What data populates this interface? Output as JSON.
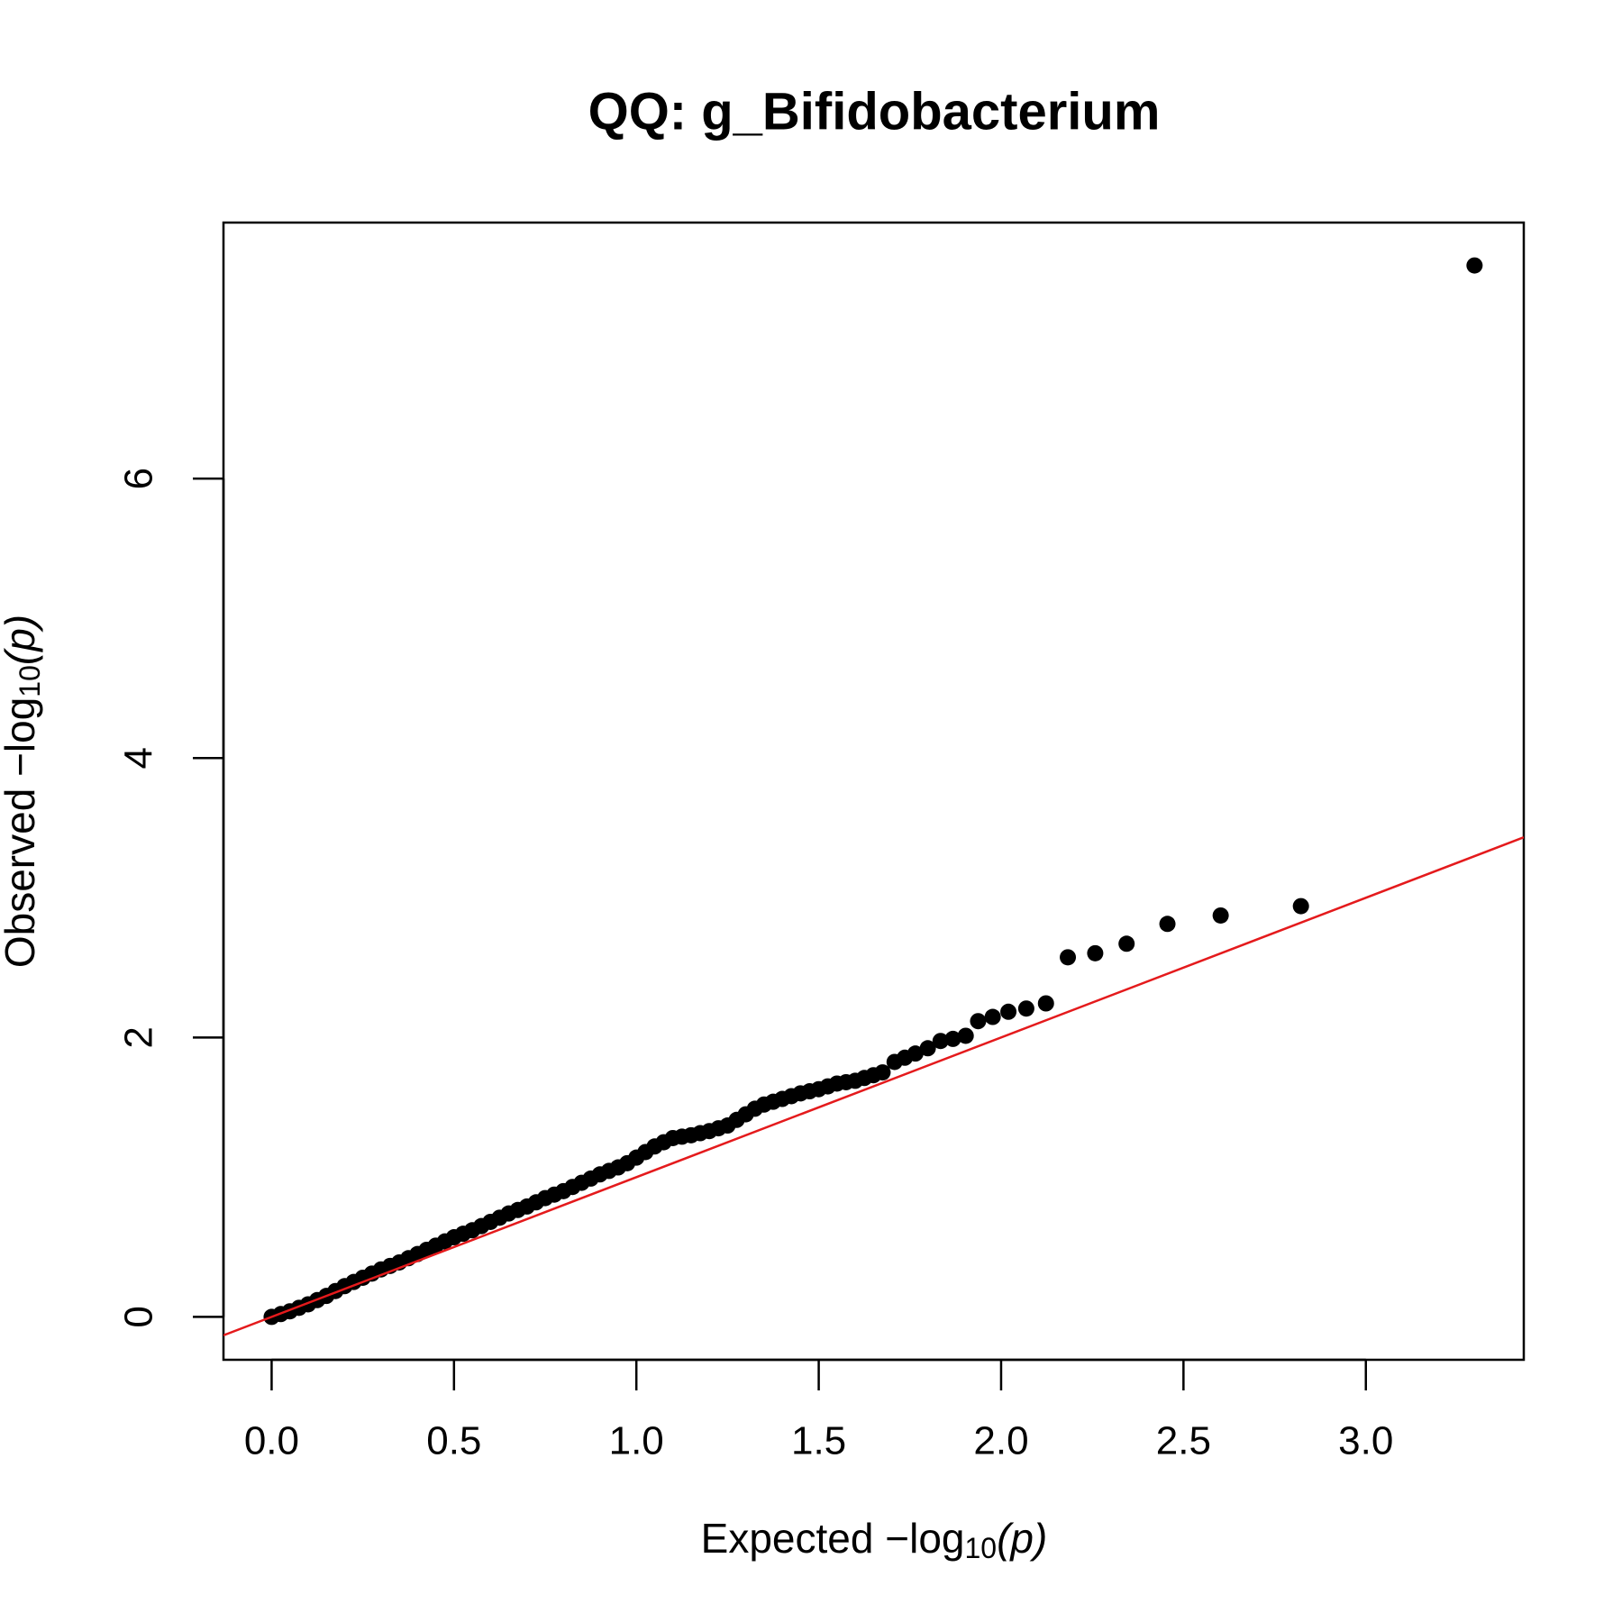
{
  "chart_data": {
    "type": "scatter",
    "title": "QQ: g_Bifidobacterium",
    "xlabel": {
      "text": "Expected  −log",
      "subscript": "10",
      "argument": "(p)"
    },
    "ylabel": {
      "text": "Observed  −log",
      "subscript": "10",
      "argument": "(p)"
    },
    "xlim": [
      -0.132,
      3.433
    ],
    "ylim": [
      -0.307,
      7.833
    ],
    "xticks": [
      {
        "value": 0,
        "label": "0.0"
      },
      0.5,
      {
        "value": 1,
        "label": "1.0"
      },
      1.5,
      {
        "value": 2,
        "label": "2.0"
      },
      2.5,
      {
        "value": 3,
        "label": "3.0"
      }
    ],
    "yticks": [
      0,
      2,
      4,
      6
    ],
    "grid": false,
    "reference_line": {
      "slope": 1,
      "intercept": 0,
      "color": "#e41a1c"
    },
    "series": [
      {
        "color": "#000000",
        "x": [
          0,
          0.025,
          0.05,
          0.075,
          0.1,
          0.125,
          0.15,
          0.175,
          0.2,
          0.225,
          0.25,
          0.275,
          0.3,
          0.325,
          0.35,
          0.375,
          0.4,
          0.425,
          0.45,
          0.475,
          0.5,
          0.525,
          0.55,
          0.575,
          0.6,
          0.625,
          0.65,
          0.675,
          0.7,
          0.725,
          0.75,
          0.775,
          0.8,
          0.825,
          0.85,
          0.875,
          0.9,
          0.925,
          0.95,
          0.975,
          1.0,
          1.025,
          1.05,
          1.075,
          1.1,
          1.125,
          1.15,
          1.175,
          1.2,
          1.225,
          1.25,
          1.275,
          1.3,
          1.325,
          1.35,
          1.375,
          1.4,
          1.425,
          1.45,
          1.475,
          1.5,
          1.525,
          1.55,
          1.575,
          1.6,
          1.625,
          1.65,
          1.675,
          1.708,
          1.736,
          1.765,
          1.799,
          1.834,
          1.868,
          1.903,
          1.937,
          1.977,
          2.02,
          2.069,
          2.123,
          2.183,
          2.258,
          2.344,
          2.456,
          2.602,
          2.822,
          3.298
        ],
        "values": [
          0,
          0.02,
          0.04,
          0.065,
          0.09,
          0.12,
          0.15,
          0.185,
          0.22,
          0.25,
          0.28,
          0.31,
          0.34,
          0.365,
          0.39,
          0.42,
          0.45,
          0.48,
          0.51,
          0.54,
          0.57,
          0.595,
          0.62,
          0.65,
          0.68,
          0.71,
          0.74,
          0.765,
          0.79,
          0.82,
          0.85,
          0.875,
          0.9,
          0.93,
          0.96,
          0.99,
          1.02,
          1.045,
          1.07,
          1.1,
          1.14,
          1.18,
          1.22,
          1.25,
          1.28,
          1.29,
          1.3,
          1.315,
          1.33,
          1.35,
          1.37,
          1.41,
          1.45,
          1.49,
          1.52,
          1.54,
          1.56,
          1.58,
          1.6,
          1.615,
          1.63,
          1.65,
          1.67,
          1.68,
          1.69,
          1.71,
          1.73,
          1.75,
          1.825,
          1.855,
          1.885,
          1.923,
          1.975,
          1.99,
          2.012,
          2.117,
          2.147,
          2.184,
          2.207,
          2.244,
          2.574,
          2.603,
          2.671,
          2.813,
          2.873,
          2.94,
          7.526
        ]
      }
    ]
  }
}
